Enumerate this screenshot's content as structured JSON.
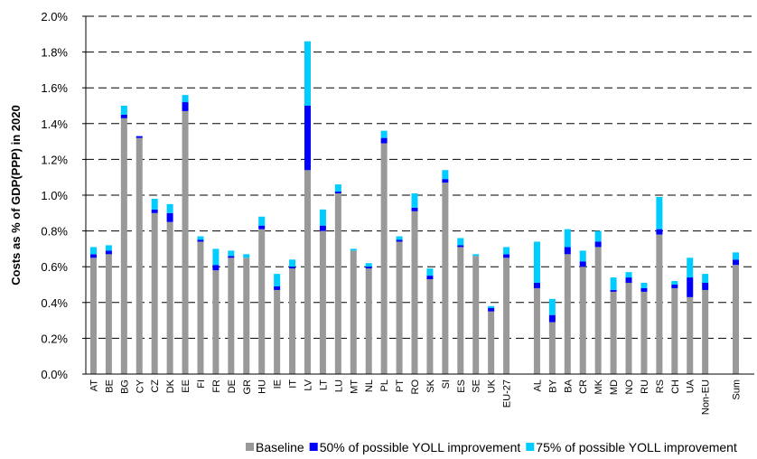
{
  "chart_data": {
    "type": "stacked_bar",
    "y_label": "Costs as % of GDP(PPP) in 2020",
    "categories": [
      "AT",
      "BE",
      "BG",
      "CY",
      "CZ",
      "DK",
      "EE",
      "FI",
      "FR",
      "DE",
      "GR",
      "HU",
      "IE",
      "IT",
      "LV",
      "LT",
      "LU",
      "MT",
      "NL",
      "PL",
      "PT",
      "RO",
      "SK",
      "SI",
      "ES",
      "SE",
      "UK",
      "EU-27",
      null,
      "AL",
      "BY",
      "BA",
      "CR",
      "MK",
      "MD",
      "NO",
      "RU",
      "RS",
      "CH",
      "UA",
      "Non-EU",
      null,
      "Sum"
    ],
    "series": [
      {
        "name": "Baseline",
        "color": "#999999",
        "values": [
          0.65,
          0.67,
          1.43,
          1.32,
          0.9,
          0.85,
          1.47,
          0.74,
          0.58,
          0.65,
          0.65,
          0.81,
          0.47,
          0.59,
          1.14,
          0.8,
          1.01,
          0.69,
          0.59,
          1.29,
          0.74,
          0.91,
          0.53,
          1.07,
          0.71,
          0.66,
          0.35,
          0.65,
          null,
          0.48,
          0.29,
          0.67,
          0.6,
          0.71,
          0.46,
          0.51,
          0.46,
          0.78,
          0.48,
          0.43,
          0.47,
          null,
          0.61
        ]
      },
      {
        "name": "50% of possible YOLL improvement",
        "color": "#0000ff",
        "values": [
          0.02,
          0.02,
          0.02,
          0.01,
          0.02,
          0.05,
          0.05,
          0.01,
          0.03,
          0.01,
          0.0,
          0.02,
          0.02,
          0.01,
          0.36,
          0.03,
          0.01,
          0.0,
          0.01,
          0.03,
          0.01,
          0.02,
          0.02,
          0.02,
          0.01,
          0.0,
          0.02,
          0.02,
          null,
          0.03,
          0.04,
          0.04,
          0.03,
          0.03,
          0.01,
          0.03,
          0.02,
          0.03,
          0.02,
          0.11,
          0.04,
          null,
          0.03
        ]
      },
      {
        "name": "75% of possible YOLL improvement",
        "color": "#00ccff",
        "values": [
          0.04,
          0.03,
          0.05,
          0.0,
          0.06,
          0.05,
          0.04,
          0.02,
          0.09,
          0.03,
          0.02,
          0.05,
          0.07,
          0.04,
          0.36,
          0.09,
          0.04,
          0.01,
          0.02,
          0.04,
          0.02,
          0.08,
          0.04,
          0.05,
          0.04,
          0.01,
          0.01,
          0.04,
          null,
          0.23,
          0.09,
          0.1,
          0.06,
          0.06,
          0.07,
          0.03,
          0.03,
          0.18,
          0.02,
          0.11,
          0.05,
          null,
          0.04
        ]
      }
    ],
    "ylim": [
      0,
      2.0
    ],
    "yticks": [
      {
        "value": 0,
        "label": "0.0%"
      },
      {
        "value": 0.2,
        "label": "0.2%"
      },
      {
        "value": 0.4,
        "label": "0.4%"
      },
      {
        "value": 0.6,
        "label": "0.6%"
      },
      {
        "value": 0.8,
        "label": "0.8%"
      },
      {
        "value": 1.0,
        "label": "1.0%"
      },
      {
        "value": 1.2,
        "label": "1.2%"
      },
      {
        "value": 1.4,
        "label": "1.4%"
      },
      {
        "value": 1.6,
        "label": "1.6%"
      },
      {
        "value": 1.8,
        "label": "1.8%"
      },
      {
        "value": 2.0,
        "label": "2.0%"
      }
    ],
    "grid": true,
    "legend": "bottom"
  }
}
